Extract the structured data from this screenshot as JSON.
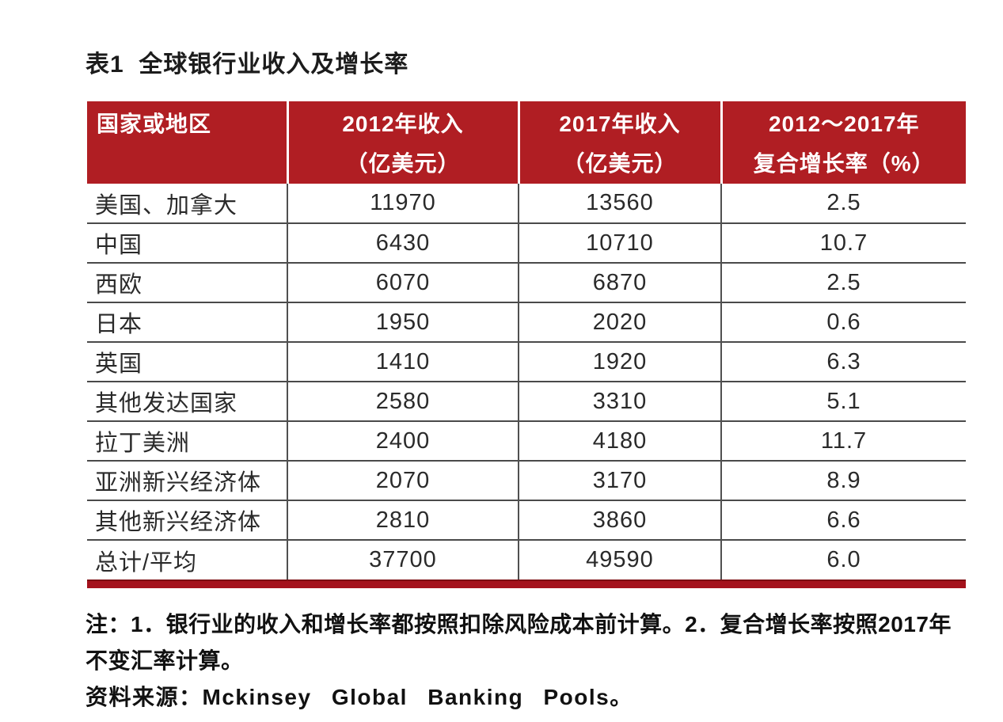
{
  "title": "表1  全球银行业收入及增长率",
  "table": {
    "header_bg": "#b01e23",
    "header_text_color": "#ffffff",
    "bottom_bar_color": "#a4121c",
    "separator_color": "#4a4a4a",
    "headers": [
      {
        "line1": "国家或地区",
        "line2": ""
      },
      {
        "line1": "2012年收入",
        "line2": "（亿美元）"
      },
      {
        "line1": "2017年收入",
        "line2": "（亿美元）"
      },
      {
        "line1": "2012～2017年",
        "line2": "复合增长率（%）"
      }
    ],
    "rows": [
      {
        "region": "美国、加拿大",
        "rev2012": "11970",
        "rev2017": "13560",
        "cagr": "2.5"
      },
      {
        "region": "中国",
        "rev2012": "6430",
        "rev2017": "10710",
        "cagr": "10.7"
      },
      {
        "region": "西欧",
        "rev2012": "6070",
        "rev2017": "6870",
        "cagr": "2.5"
      },
      {
        "region": "日本",
        "rev2012": "1950",
        "rev2017": "2020",
        "cagr": "0.6"
      },
      {
        "region": "英国",
        "rev2012": "1410",
        "rev2017": "1920",
        "cagr": "6.3"
      },
      {
        "region": "其他发达国家",
        "rev2012": "2580",
        "rev2017": "3310",
        "cagr": "5.1"
      },
      {
        "region": "拉丁美洲",
        "rev2012": "2400",
        "rev2017": "4180",
        "cagr": "11.7"
      },
      {
        "region": "亚洲新兴经济体",
        "rev2012": "2070",
        "rev2017": "3170",
        "cagr": "8.9"
      },
      {
        "region": "其他新兴经济体",
        "rev2012": "2810",
        "rev2017": "3860",
        "cagr": "6.6"
      },
      {
        "region": "总计/平均",
        "rev2012": "37700",
        "rev2017": "49590",
        "cagr": "6.0"
      }
    ]
  },
  "notes": {
    "note": "注：1．银行业的收入和增长率都按照扣除风险成本前计算。2．复合增长率按照2017年不变汇率计算。",
    "source": "资料来源：Mckinsey Global Banking Pools。"
  },
  "chart_data": {
    "type": "table",
    "title": "表1 全球银行业收入及增长率",
    "columns": [
      "国家或地区",
      "2012年收入（亿美元）",
      "2017年收入（亿美元）",
      "2012～2017年复合增长率（%）"
    ],
    "rows": [
      [
        "美国、加拿大",
        11970,
        13560,
        2.5
      ],
      [
        "中国",
        6430,
        10710,
        10.7
      ],
      [
        "西欧",
        6070,
        6870,
        2.5
      ],
      [
        "日本",
        1950,
        2020,
        0.6
      ],
      [
        "英国",
        1410,
        1920,
        6.3
      ],
      [
        "其他发达国家",
        2580,
        3310,
        5.1
      ],
      [
        "拉丁美洲",
        2400,
        4180,
        11.7
      ],
      [
        "亚洲新兴经济体",
        2070,
        3170,
        8.9
      ],
      [
        "其他新兴经济体",
        2810,
        3860,
        6.6
      ],
      [
        "总计/平均",
        37700,
        49590,
        6.0
      ]
    ],
    "notes": "注：1．银行业的收入和增长率都按照扣除风险成本前计算。2．复合增长率按照2017年不变汇率计算。",
    "source": "资料来源：Mckinsey Global Banking Pools。"
  }
}
